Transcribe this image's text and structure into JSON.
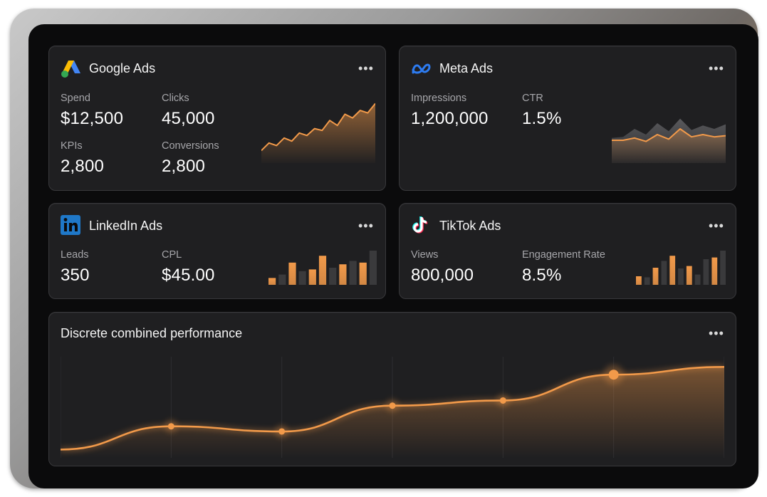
{
  "cards": {
    "google": {
      "title": "Google Ads",
      "icon": "google-ads-icon",
      "metrics": [
        {
          "label": "Spend",
          "value": "$12,500"
        },
        {
          "label": "Clicks",
          "value": "45,000"
        },
        {
          "label": "KPIs",
          "value": "2,800"
        },
        {
          "label": "Conversions",
          "value": "2,800"
        }
      ],
      "sparkline": [
        20,
        32,
        28,
        40,
        35,
        48,
        44,
        55,
        52,
        68,
        60,
        78,
        72,
        84,
        80,
        95
      ]
    },
    "meta": {
      "title": "Meta Ads",
      "icon": "meta-icon",
      "metrics": [
        {
          "label": "Impressions",
          "value": "1,200,000"
        },
        {
          "label": "CTR",
          "value": "1.5%"
        }
      ],
      "area_front": [
        40,
        40,
        44,
        38,
        50,
        42,
        60,
        46,
        50,
        46,
        48
      ],
      "area_back": [
        44,
        46,
        60,
        50,
        70,
        56,
        78,
        58,
        66,
        60,
        68
      ]
    },
    "linkedin": {
      "title": "LinkedIn Ads",
      "icon": "linkedin-icon",
      "metrics": [
        {
          "label": "Leads",
          "value": "350"
        },
        {
          "label": "CPL",
          "value": "$45.00"
        }
      ],
      "bars": [
        {
          "v": 20,
          "hi": true
        },
        {
          "v": 30,
          "hi": false
        },
        {
          "v": 65,
          "hi": true
        },
        {
          "v": 40,
          "hi": false
        },
        {
          "v": 45,
          "hi": true
        },
        {
          "v": 85,
          "hi": true
        },
        {
          "v": 50,
          "hi": false
        },
        {
          "v": 60,
          "hi": true
        },
        {
          "v": 70,
          "hi": false
        },
        {
          "v": 65,
          "hi": true
        },
        {
          "v": 100,
          "hi": false
        }
      ]
    },
    "tiktok": {
      "title": "TikTok Ads",
      "icon": "tiktok-icon",
      "metrics": [
        {
          "label": "Views",
          "value": "800,000"
        },
        {
          "label": "Engagement Rate",
          "value": "8.5%"
        }
      ],
      "bars": [
        {
          "v": 25,
          "hi": true
        },
        {
          "v": 22,
          "hi": false
        },
        {
          "v": 50,
          "hi": true
        },
        {
          "v": 70,
          "hi": false
        },
        {
          "v": 85,
          "hi": true
        },
        {
          "v": 48,
          "hi": false
        },
        {
          "v": 55,
          "hi": true
        },
        {
          "v": 30,
          "hi": false
        },
        {
          "v": 75,
          "hi": false
        },
        {
          "v": 80,
          "hi": true
        },
        {
          "v": 100,
          "hi": false
        }
      ]
    },
    "combined": {
      "title": "Discrete combined performance"
    }
  },
  "colors": {
    "accent": "#f29a4a",
    "accent_dim": "#7a4a24",
    "bar_muted": "#3a3a3c",
    "card_bg": "#1f1f21"
  },
  "chart_data": {
    "type": "line",
    "title": "Discrete combined performance",
    "x": [
      0,
      1,
      2,
      3,
      4,
      5,
      6
    ],
    "series": [
      {
        "values": [
          2,
          20,
          16,
          36,
          40,
          60,
          66
        ]
      }
    ],
    "highlighted_points": [
      1,
      2,
      3,
      4,
      5
    ],
    "ylim": [
      0,
      75
    ],
    "grid": "vertical"
  }
}
